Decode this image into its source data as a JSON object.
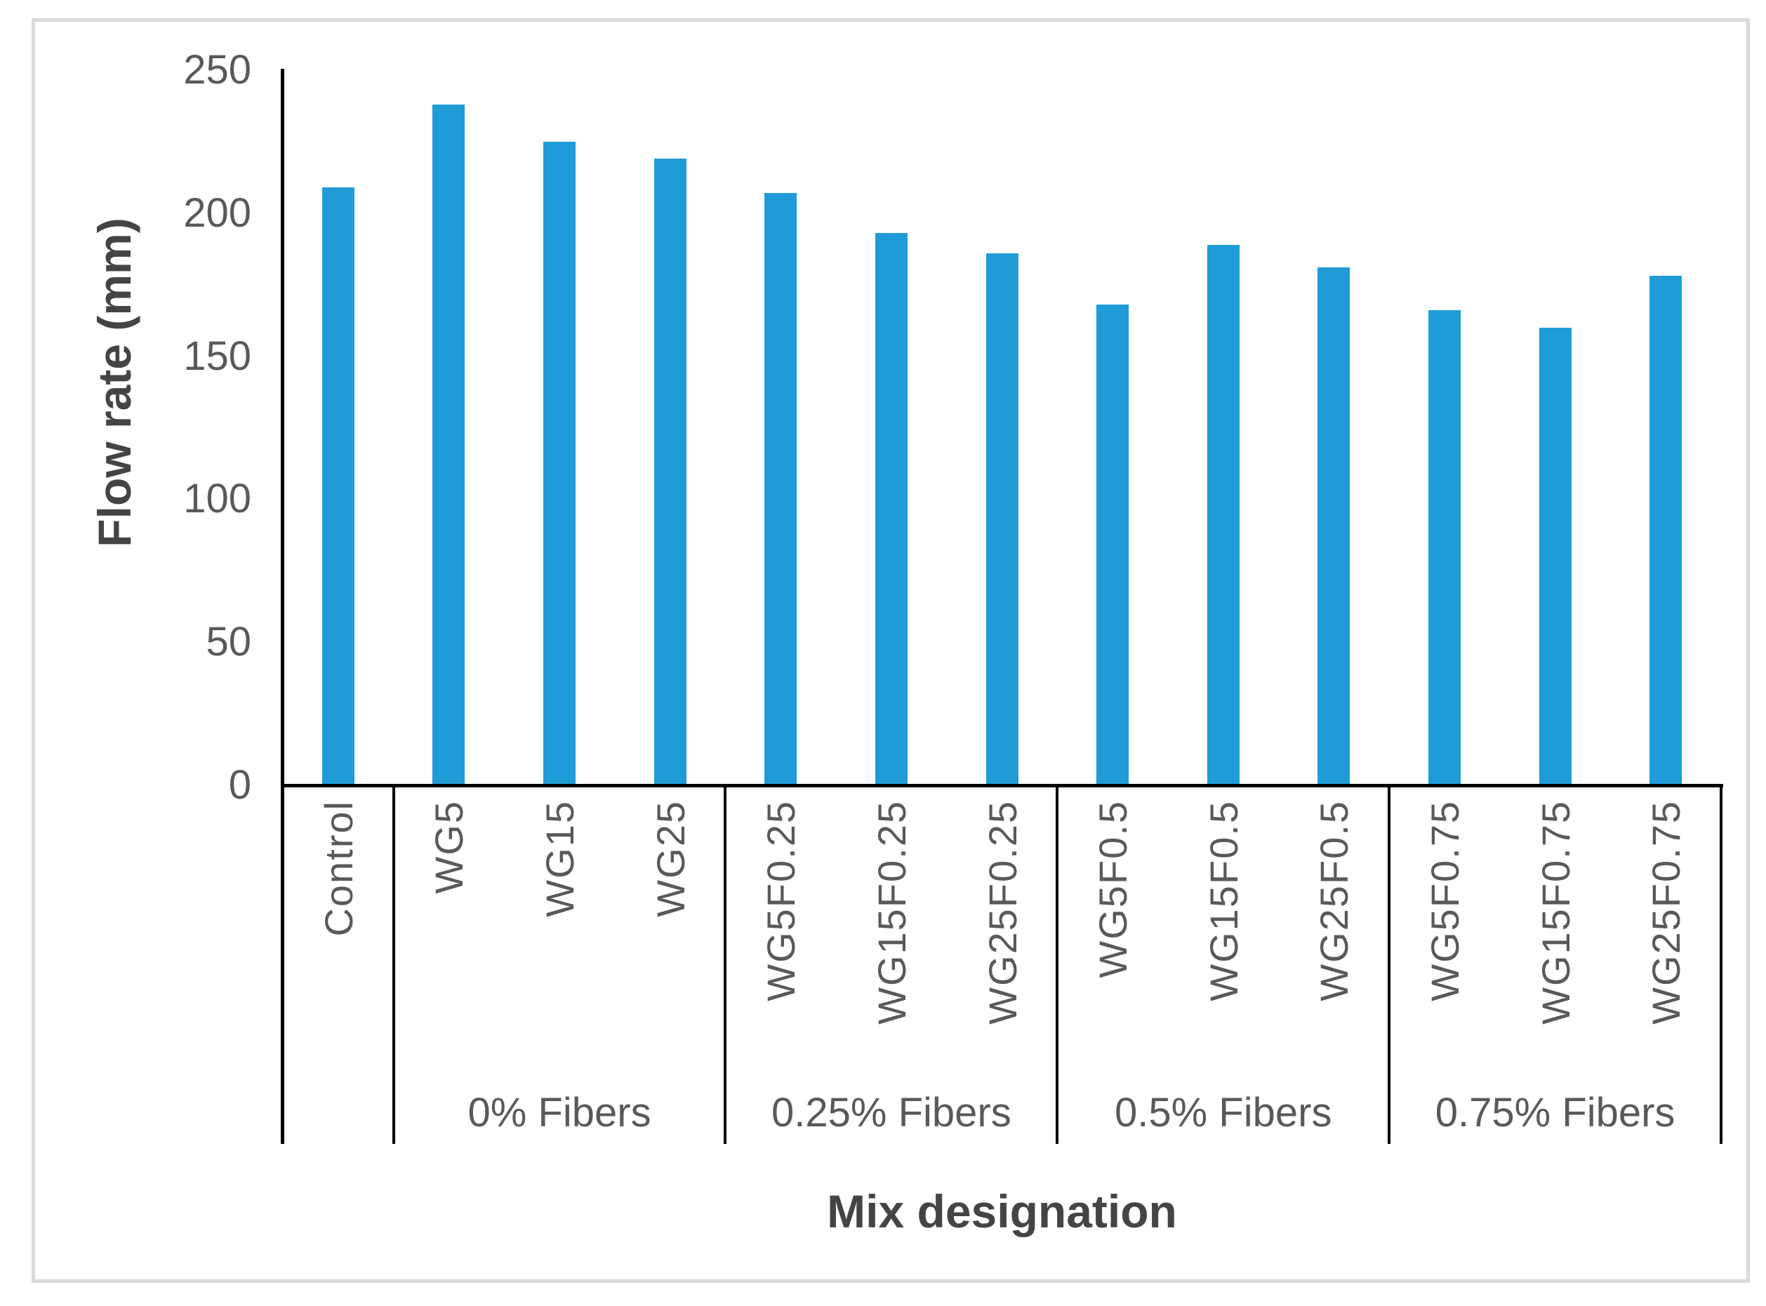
{
  "chart_data": {
    "type": "bar",
    "title": "",
    "ylabel": "Flow rate (mm)",
    "xlabel": "Mix designation",
    "ylim": [
      0,
      250
    ],
    "yticks": [
      0,
      50,
      100,
      150,
      200,
      250
    ],
    "grid": false,
    "legend_position": "none",
    "categories": [
      "Control",
      "WG5",
      "WG15",
      "WG25",
      "WG5F0.25",
      "WG15F0.25",
      "WG25F0.25",
      "WG5F0.5",
      "WG15F0.5",
      "WG25F0.5",
      "WG5F0.75",
      "WG15F0.75",
      "WG25F0.75"
    ],
    "values": [
      209,
      238,
      225,
      219,
      207,
      193,
      186,
      168,
      189,
      181,
      166,
      160,
      178
    ],
    "groups": [
      {
        "label": "",
        "start": 0,
        "count": 1
      },
      {
        "label": "0% Fibers",
        "start": 1,
        "count": 3
      },
      {
        "label": "0.25% Fibers",
        "start": 4,
        "count": 3
      },
      {
        "label": "0.5% Fibers",
        "start": 7,
        "count": 3
      },
      {
        "label": "0.75% Fibers",
        "start": 10,
        "count": 3
      }
    ]
  },
  "style": {
    "bar_color": "#1F9CD7",
    "tick_text_color": "#595959",
    "axis_title_color": "#444444",
    "axis_line_color": "#000000",
    "figure_border_color": "#DADADA"
  }
}
